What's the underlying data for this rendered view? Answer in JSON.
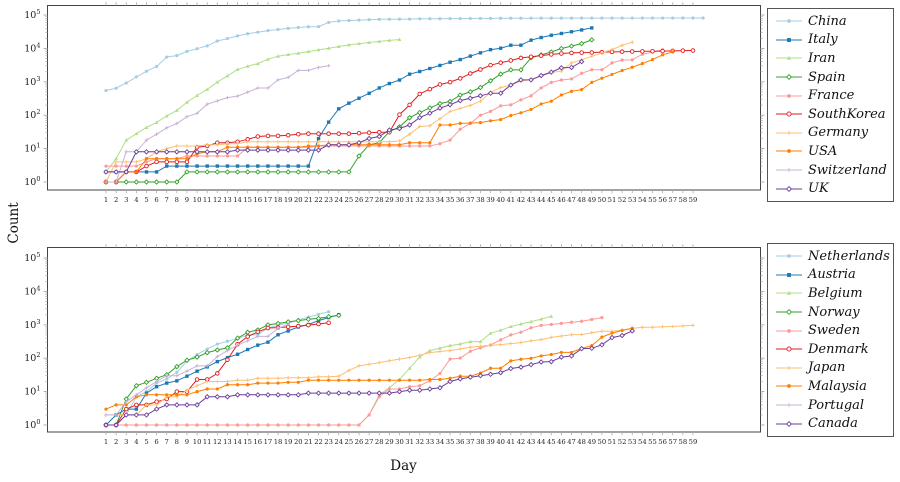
{
  "figure": {
    "ylabel": "Count",
    "xlabel": "Day",
    "background": "#ffffff",
    "box_color": "#444444",
    "tick_color": "#aaaaaa",
    "label_color": "#222222"
  },
  "chart_data": [
    {
      "id": "top",
      "type": "line",
      "log_y": true,
      "ylim": [
        1,
        100000
      ],
      "y_tick_exponents": [
        0,
        1,
        2,
        3,
        4,
        5
      ],
      "x_ticks": [
        1,
        2,
        3,
        4,
        5,
        6,
        7,
        8,
        9,
        10,
        11,
        12,
        13,
        14,
        15,
        16,
        17,
        18,
        19,
        20,
        21,
        22,
        23,
        24,
        25,
        26,
        27,
        28,
        29,
        30,
        31,
        32,
        33,
        34,
        35,
        36,
        37,
        38,
        39,
        40,
        41,
        42,
        43,
        44,
        45,
        46,
        47,
        48,
        49,
        50,
        51,
        52,
        53,
        54,
        55,
        56,
        57,
        58,
        59
      ],
      "legend_position": "right",
      "grid": false,
      "series": [
        {
          "name": "China",
          "color": "#a6cee3",
          "marker": "dot",
          "values": [
            548,
            643,
            920,
            1406,
            2075,
            2877,
            5509,
            6087,
            8141,
            9802,
            11891,
            16630,
            19716,
            23707,
            27440,
            30587,
            34110,
            36814,
            39829,
            42354,
            44386,
            44759,
            59895,
            66358,
            68413,
            70513,
            72434,
            74211,
            74619,
            75077,
            75550,
            77001,
            77022,
            77241,
            77754,
            78166,
            78600,
            78928,
            79356,
            79932,
            80136,
            80261,
            80386,
            80537,
            80690,
            80770,
            80823,
            80860,
            80887,
            80921,
            80932,
            80945,
            80977,
            81003,
            81033,
            81058,
            81102,
            81156,
            81250,
            81305
          ]
        },
        {
          "name": "Italy",
          "color": "#1f78b4",
          "marker": "square",
          "values": [
            2,
            2,
            2,
            2,
            2,
            2,
            3,
            3,
            3,
            3,
            3,
            3,
            3,
            3,
            3,
            3,
            3,
            3,
            3,
            3,
            3,
            20,
            62,
            155,
            229,
            322,
            453,
            655,
            888,
            1128,
            1694,
            2036,
            2502,
            3089,
            3858,
            4636,
            5883,
            7375,
            9172,
            10149,
            12462,
            12462,
            17660,
            21157,
            24747,
            27980,
            31506,
            35713,
            41035
          ]
        },
        {
          "name": "Iran",
          "color": "#b2df8a",
          "marker": "triangle",
          "values": [
            2,
            5,
            18,
            28,
            43,
            61,
            95,
            139,
            245,
            388,
            593,
            978,
            1501,
            2336,
            2922,
            3513,
            4747,
            5823,
            6566,
            7161,
            8042,
            9000,
            10075,
            11364,
            12729,
            13938,
            14991,
            16169,
            17361,
            18407
          ]
        },
        {
          "name": "Spain",
          "color": "#33a02c",
          "marker": "diamondO",
          "values": [
            1,
            1,
            1,
            1,
            1,
            1,
            1,
            1,
            2,
            2,
            2,
            2,
            2,
            2,
            2,
            2,
            2,
            2,
            2,
            2,
            2,
            2,
            2,
            2,
            2,
            6,
            13,
            15,
            32,
            45,
            84,
            120,
            165,
            222,
            259,
            400,
            500,
            673,
            1073,
            1695,
            2277,
            2277,
            5232,
            6391,
            7798,
            9942,
            11748,
            13910,
            17963
          ]
        },
        {
          "name": "France",
          "color": "#fb9a99",
          "marker": "dot",
          "values": [
            3,
            3,
            3,
            3,
            4,
            5,
            5,
            5,
            6,
            6,
            6,
            6,
            6,
            6,
            11,
            11,
            11,
            11,
            11,
            11,
            11,
            12,
            12,
            12,
            12,
            12,
            12,
            12,
            12,
            12,
            12,
            12,
            12,
            14,
            18,
            38,
            57,
            100,
            130,
            191,
            204,
            288,
            380,
            656,
            959,
            1136,
            1219,
            1794,
            2293,
            2293,
            3681,
            4499,
            4532,
            6683,
            7715,
            9124
          ]
        },
        {
          "name": "SouthKorea",
          "color": "#e31a1c",
          "marker": "circleO",
          "values": [
            1,
            1,
            2,
            2,
            3,
            4,
            4,
            4,
            4,
            11,
            12,
            15,
            15,
            16,
            19,
            23,
            24,
            24,
            25,
            27,
            28,
            28,
            28,
            28,
            28,
            29,
            30,
            31,
            31,
            104,
            204,
            433,
            602,
            833,
            977,
            1261,
            1766,
            2337,
            3150,
            3736,
            4335,
            5186,
            5621,
            6088,
            6593,
            7041,
            7314,
            7478,
            7513,
            7755,
            7869,
            7979,
            8086,
            8162,
            8236,
            8320,
            8413,
            8565,
            8652
          ]
        },
        {
          "name": "Germany",
          "color": "#fdbf6f",
          "marker": "plus",
          "values": [
            1,
            4,
            4,
            4,
            5,
            8,
            10,
            12,
            12,
            12,
            13,
            13,
            14,
            14,
            16,
            16,
            16,
            16,
            16,
            16,
            16,
            16,
            16,
            16,
            16,
            16,
            16,
            16,
            16,
            17,
            27,
            46,
            48,
            79,
            130,
            159,
            196,
            262,
            482,
            670,
            799,
            1040,
            1176,
            1457,
            1908,
            2078,
            3675,
            4585,
            5795,
            7272,
            9257,
            12327,
            15320
          ]
        },
        {
          "name": "USA",
          "color": "#ff7f00",
          "marker": "dot",
          "values": [
            1,
            1,
            2,
            2,
            5,
            5,
            5,
            5,
            5,
            7,
            8,
            8,
            11,
            11,
            11,
            11,
            11,
            11,
            11,
            11,
            12,
            12,
            13,
            13,
            13,
            13,
            13,
            13,
            13,
            13,
            15,
            15,
            15,
            51,
            51,
            57,
            58,
            60,
            68,
            74,
            98,
            118,
            149,
            217,
            262,
            402,
            518,
            583,
            959,
            1281,
            1663,
            2179,
            2727,
            3499,
            4632,
            6421,
            7783
          ]
        },
        {
          "name": "Switzerland",
          "color": "#cab2d6",
          "marker": "plus",
          "values": [
            1,
            1,
            8,
            8,
            18,
            27,
            42,
            56,
            90,
            114,
            214,
            268,
            337,
            374,
            491,
            652,
            652,
            1139,
            1359,
            2200,
            2200,
            2700,
            3028
          ]
        },
        {
          "name": "UK",
          "color": "#6a3d9a",
          "marker": "diamondO",
          "values": [
            2,
            2,
            2,
            8,
            8,
            8,
            8,
            8,
            8,
            8,
            8,
            8,
            8,
            9,
            9,
            9,
            9,
            9,
            9,
            9,
            9,
            9,
            13,
            13,
            13,
            15,
            20,
            23,
            36,
            40,
            51,
            85,
            115,
            163,
            206,
            273,
            321,
            382,
            456,
            456,
            798,
            1140,
            1140,
            1543,
            1950,
            2626,
            2689,
            4014
          ]
        }
      ]
    },
    {
      "id": "bottom",
      "type": "line",
      "log_y": true,
      "ylim": [
        1,
        100000
      ],
      "y_tick_exponents": [
        0,
        1,
        2,
        3,
        4,
        5
      ],
      "x_ticks": [
        1,
        2,
        3,
        4,
        5,
        6,
        7,
        8,
        9,
        10,
        11,
        12,
        13,
        14,
        15,
        16,
        17,
        18,
        19,
        20,
        21,
        22,
        23,
        24,
        25,
        26,
        27,
        28,
        29,
        30,
        31,
        32,
        33,
        34,
        35,
        36,
        37,
        38,
        39,
        40,
        41,
        42,
        43,
        44,
        45,
        46,
        47,
        48,
        49,
        50,
        51,
        52,
        53,
        54,
        55,
        56,
        57,
        58,
        59
      ],
      "legend_position": "right",
      "grid": false,
      "series": [
        {
          "name": "Netherlands",
          "color": "#a6cee3",
          "marker": "dot",
          "values": [
            1,
            1,
            2,
            7,
            10,
            18,
            24,
            38,
            82,
            128,
            188,
            265,
            321,
            382,
            503,
            503,
            804,
            959,
            1135,
            1413,
            1705,
            2051,
            2460
          ]
        },
        {
          "name": "Austria",
          "color": "#1f78b4",
          "marker": "square",
          "values": [
            1,
            2,
            3,
            3,
            9,
            14,
            18,
            21,
            29,
            41,
            55,
            79,
            104,
            131,
            182,
            246,
            302,
            504,
            655,
            860,
            1018,
            1332,
            1646,
            2013
          ]
        },
        {
          "name": "Belgium",
          "color": "#b2df8a",
          "marker": "triangle",
          "values": [
            1,
            1,
            1,
            1,
            1,
            1,
            1,
            1,
            1,
            1,
            1,
            1,
            1,
            1,
            1,
            1,
            1,
            1,
            1,
            1,
            1,
            1,
            1,
            1,
            1,
            1,
            2,
            8,
            13,
            23,
            50,
            109,
            169,
            200,
            239,
            267,
            314,
            314,
            559,
            689,
            886,
            1058,
            1243,
            1486,
            1795
          ]
        },
        {
          "name": "Norway",
          "color": "#33a02c",
          "marker": "diamondO",
          "values": [
            1,
            1,
            6,
            15,
            19,
            25,
            32,
            56,
            87,
            108,
            147,
            176,
            205,
            400,
            598,
            702,
            996,
            1090,
            1221,
            1333,
            1463,
            1550,
            1746,
            1914
          ]
        },
        {
          "name": "Sweden",
          "color": "#fb9a99",
          "marker": "dot",
          "values": [
            1,
            1,
            1,
            1,
            1,
            1,
            1,
            1,
            1,
            1,
            1,
            1,
            1,
            1,
            1,
            1,
            1,
            1,
            1,
            1,
            1,
            1,
            1,
            1,
            1,
            1,
            2,
            7,
            12,
            12,
            14,
            15,
            21,
            35,
            94,
            101,
            161,
            203,
            248,
            355,
            500,
            599,
            814,
            961,
            1022,
            1103,
            1190,
            1279,
            1439,
            1639
          ]
        },
        {
          "name": "Denmark",
          "color": "#e31a1c",
          "marker": "circleO",
          "values": [
            1,
            1,
            3,
            4,
            4,
            5,
            6,
            10,
            10,
            23,
            23,
            35,
            90,
            262,
            442,
            615,
            801,
            827,
            864,
            914,
            977,
            1057,
            1151
          ]
        },
        {
          "name": "Japan",
          "color": "#fdbf6f",
          "marker": "plus",
          "values": [
            2,
            2,
            2,
            2,
            4,
            4,
            7,
            7,
            11,
            15,
            20,
            20,
            20,
            22,
            22,
            25,
            25,
            25,
            26,
            26,
            26,
            28,
            28,
            29,
            43,
            59,
            66,
            74,
            84,
            94,
            105,
            122,
            147,
            159,
            170,
            189,
            214,
            228,
            241,
            256,
            274,
            293,
            331,
            360,
            420,
            461,
            502,
            511,
            581,
            639,
            639,
            701,
            773,
            839,
            839,
            878,
            889,
            924,
            963
          ]
        },
        {
          "name": "Malaysia",
          "color": "#ff7f00",
          "marker": "dot",
          "values": [
            3,
            4,
            4,
            7,
            8,
            8,
            8,
            8,
            8,
            10,
            12,
            12,
            16,
            16,
            16,
            18,
            18,
            18,
            19,
            19,
            22,
            22,
            22,
            22,
            22,
            22,
            22,
            22,
            22,
            22,
            22,
            22,
            23,
            23,
            25,
            29,
            29,
            36,
            50,
            50,
            83,
            93,
            99,
            117,
            129,
            149,
            149,
            197,
            238,
            428,
            566,
            673,
            790
          ]
        },
        {
          "name": "Portugal",
          "color": "#cab2d6",
          "marker": "plus",
          "values": [
            2,
            2,
            5,
            8,
            13,
            20,
            30,
            30,
            41,
            59,
            59,
            112,
            169,
            245,
            331,
            448,
            448,
            785,
            1020
          ]
        },
        {
          "name": "Canada",
          "color": "#6a3d9a",
          "marker": "diamondO",
          "values": [
            1,
            1,
            2,
            2,
            2,
            3,
            4,
            4,
            4,
            4,
            7,
            7,
            7,
            8,
            8,
            8,
            8,
            8,
            8,
            8,
            9,
            9,
            9,
            9,
            9,
            9,
            9,
            9,
            9,
            10,
            11,
            11,
            12,
            13,
            20,
            24,
            27,
            30,
            33,
            37,
            49,
            54,
            64,
            77,
            79,
            108,
            117,
            193,
            198,
            252,
            415,
            478,
            657
          ]
        }
      ]
    }
  ]
}
